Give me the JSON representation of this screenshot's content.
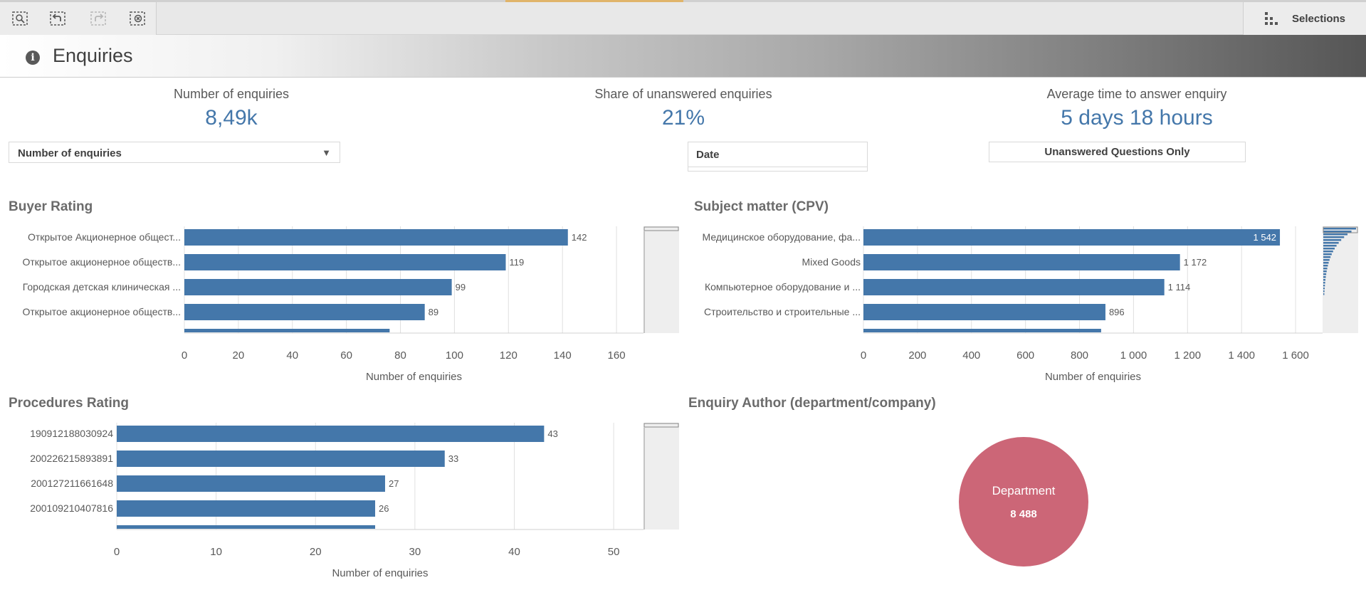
{
  "toolbar": {
    "buttons": [
      {
        "name": "smart-search-button",
        "icon": "smart-search-icon",
        "enabled": true
      },
      {
        "name": "step-back-button",
        "icon": "step-back-icon",
        "enabled": true
      },
      {
        "name": "step-forward-button",
        "icon": "step-forward-icon",
        "enabled": false
      },
      {
        "name": "clear-selections-button",
        "icon": "clear-selections-icon",
        "enabled": true
      }
    ],
    "selections_label": "Selections"
  },
  "sheet": {
    "title": "Enquiries",
    "info_icon": "info-icon"
  },
  "kpis": [
    {
      "label": "Number of enquiries",
      "value": "8,49k"
    },
    {
      "label": "Share of unanswered enquiries",
      "value": "21%"
    },
    {
      "label": "Average time to answer enquiry",
      "value": "5 days 18 hours"
    }
  ],
  "controls": {
    "measure_dropdown": "Number of enquiries",
    "date_filter": "Date",
    "unanswered_button": "Unanswered Questions Only"
  },
  "colors": {
    "bar": "#4477aa",
    "pie": "#cc6677",
    "kpi_value": "#4477aa"
  },
  "chart_data": [
    {
      "type": "bar",
      "orientation": "horizontal",
      "title": "Buyer Rating",
      "categories": [
        "Открытое Акционерное общест...",
        "Открытое акционерное обществ...",
        "Городская детская клиническая ...",
        "Открытое акционерное обществ...",
        ""
      ],
      "values": [
        142,
        119,
        99,
        89,
        76
      ],
      "value_labels": [
        "142",
        "119",
        "99",
        "89",
        ""
      ],
      "xlabel": "Number of enquiries",
      "xlim": [
        0,
        170
      ],
      "ticks": [
        0,
        20,
        40,
        60,
        80,
        100,
        120,
        140,
        160
      ],
      "tick_labels": [
        "0",
        "20",
        "40",
        "60",
        "80",
        "100",
        "120",
        "140",
        "160"
      ],
      "grid": true
    },
    {
      "type": "bar",
      "orientation": "horizontal",
      "title": "Subject matter (CPV)",
      "categories": [
        "Медицинское оборудование, фа...",
        "Mixed Goods",
        "Компьютерное оборудование и ...",
        "Строительство и строительные ...",
        ""
      ],
      "values": [
        1542,
        1172,
        1114,
        896,
        880
      ],
      "value_labels": [
        "1 542",
        "1 172",
        "1 114",
        "896",
        ""
      ],
      "xlabel": "Number of enquiries",
      "xlim": [
        0,
        1700
      ],
      "ticks": [
        0,
        200,
        400,
        600,
        800,
        1000,
        1200,
        1400,
        1600
      ],
      "tick_labels": [
        "0",
        "200",
        "400",
        "600",
        "800",
        "1 000",
        "1 200",
        "1 400",
        "1 600"
      ],
      "grid": true
    },
    {
      "type": "bar",
      "orientation": "horizontal",
      "title": "Procedures Rating",
      "categories": [
        "190912188030924",
        "200226215893891",
        "200127211661648",
        "200109210407816",
        ""
      ],
      "values": [
        43,
        33,
        27,
        26,
        26
      ],
      "value_labels": [
        "43",
        "33",
        "27",
        "26",
        ""
      ],
      "xlabel": "Number of enquiries",
      "xlim": [
        0,
        53
      ],
      "ticks": [
        0,
        10,
        20,
        30,
        40,
        50
      ],
      "tick_labels": [
        "0",
        "10",
        "20",
        "30",
        "40",
        "50"
      ],
      "grid": true
    },
    {
      "type": "pie",
      "title": "Enquiry Author (department/company)",
      "slices": [
        {
          "label": "Department",
          "value": 8488,
          "value_label": "8 488"
        }
      ]
    }
  ]
}
